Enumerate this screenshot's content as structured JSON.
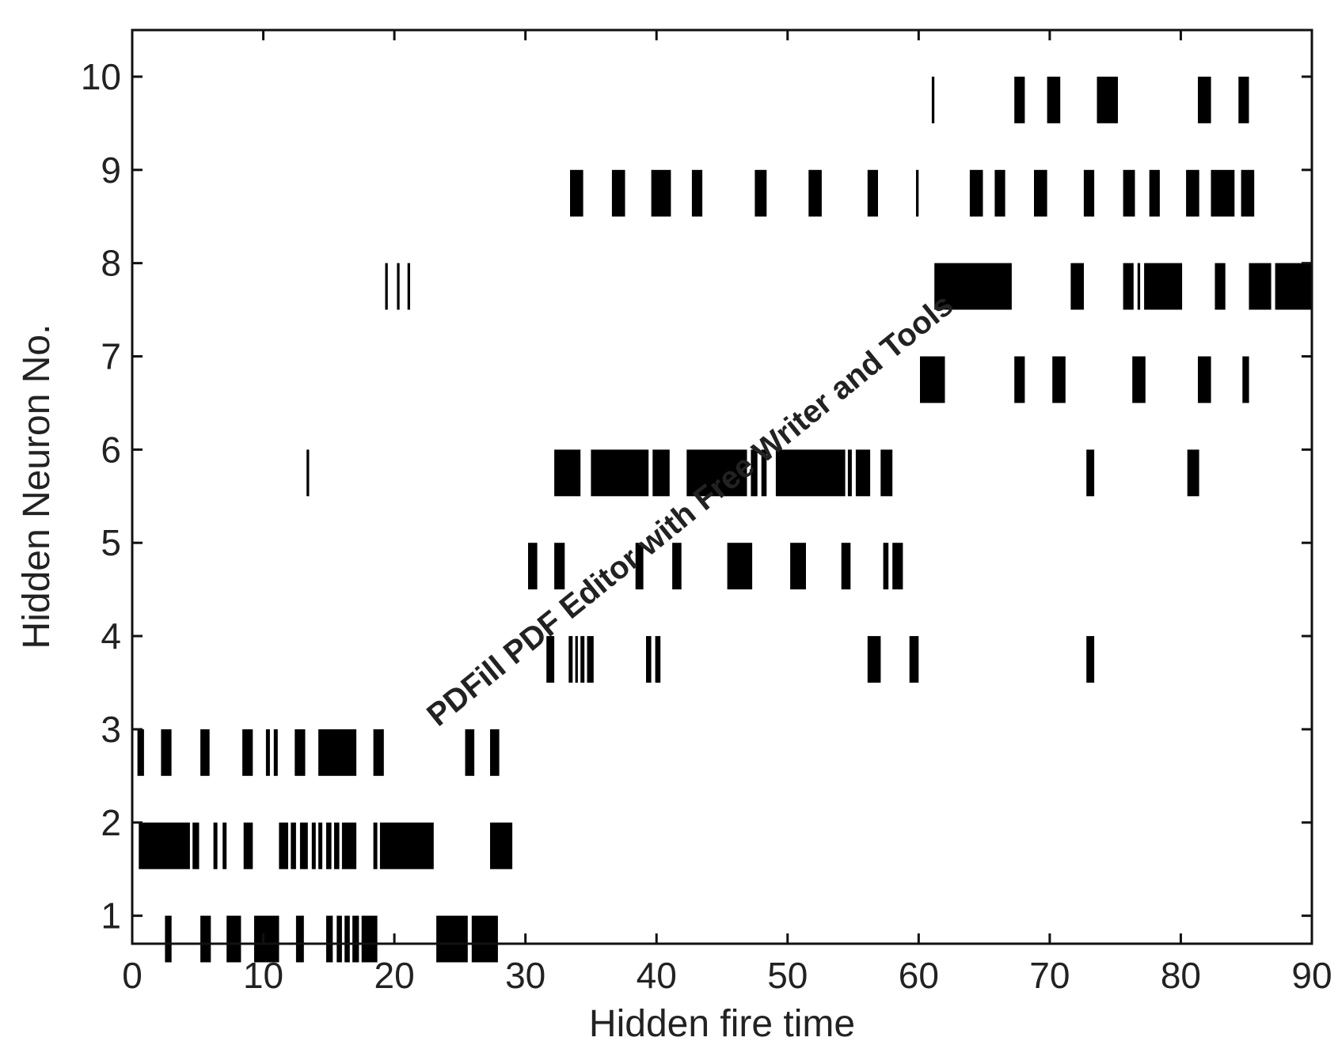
{
  "chart_data": {
    "type": "raster",
    "xlabel": "Hidden fire time",
    "ylabel": "Hidden Neuron No.",
    "xlim": [
      0,
      90
    ],
    "ylim": [
      10.5,
      0.7
    ],
    "xticks": [
      0,
      10,
      20,
      30,
      40,
      50,
      60,
      70,
      80,
      90
    ],
    "yticks": [
      1,
      2,
      3,
      4,
      5,
      6,
      7,
      8,
      9,
      10
    ],
    "grid": false,
    "series": [
      {
        "neuron": "1",
        "spikes": [
          [
            2.5,
            3.0
          ],
          [
            5.2,
            6.0
          ],
          [
            7.2,
            8.3
          ],
          [
            9.3,
            11.2
          ],
          [
            12.5,
            13.1
          ],
          [
            14.8,
            15.3
          ],
          [
            15.6,
            16.0
          ],
          [
            16.2,
            16.6
          ],
          [
            16.8,
            17.3
          ],
          [
            17.5,
            18.7
          ],
          [
            23.2,
            25.6
          ],
          [
            25.9,
            27.9
          ]
        ]
      },
      {
        "neuron": "2",
        "spikes": [
          [
            0.5,
            4.4
          ],
          [
            4.6,
            5.1
          ],
          [
            6.2,
            6.5
          ],
          [
            6.9,
            7.2
          ],
          [
            8.5,
            9.2
          ],
          [
            11.2,
            11.9
          ],
          [
            12.1,
            12.5
          ],
          [
            12.8,
            13.4
          ],
          [
            13.7,
            14.0
          ],
          [
            14.2,
            14.5
          ],
          [
            14.8,
            15.2
          ],
          [
            15.4,
            15.8
          ],
          [
            16.0,
            17.1
          ],
          [
            18.4,
            18.7
          ],
          [
            18.9,
            23.0
          ],
          [
            27.3,
            29.0
          ]
        ]
      },
      {
        "neuron": "3",
        "spikes": [
          [
            0.4,
            0.9
          ],
          [
            2.2,
            3.0
          ],
          [
            5.2,
            5.9
          ],
          [
            8.4,
            9.2
          ],
          [
            10.2,
            10.5
          ],
          [
            10.8,
            11.1
          ],
          [
            12.4,
            13.2
          ],
          [
            14.2,
            17.1
          ],
          [
            18.4,
            19.2
          ],
          [
            25.4,
            26.1
          ],
          [
            27.3,
            28.0
          ]
        ]
      },
      {
        "neuron": "4",
        "spikes": [
          [
            31.6,
            32.2
          ],
          [
            33.3,
            33.6
          ],
          [
            33.8,
            34.0
          ],
          [
            34.2,
            34.5
          ],
          [
            34.7,
            35.2
          ],
          [
            39.2,
            39.6
          ],
          [
            39.9,
            40.3
          ],
          [
            56.1,
            57.1
          ],
          [
            59.3,
            60.0
          ],
          [
            72.8,
            73.4
          ]
        ]
      },
      {
        "neuron": "5",
        "spikes": [
          [
            30.2,
            30.9
          ],
          [
            32.2,
            33.0
          ],
          [
            38.4,
            39.0
          ],
          [
            41.2,
            41.9
          ],
          [
            45.4,
            47.3
          ],
          [
            50.2,
            51.4
          ],
          [
            54.1,
            54.8
          ],
          [
            57.3,
            57.7
          ],
          [
            58.0,
            58.8
          ]
        ]
      },
      {
        "neuron": "6",
        "spikes": [
          [
            13.3,
            13.5
          ],
          [
            32.2,
            34.2
          ],
          [
            35.0,
            39.4
          ],
          [
            39.7,
            41.0
          ],
          [
            42.3,
            46.9
          ],
          [
            47.2,
            47.7
          ],
          [
            48.0,
            48.4
          ],
          [
            49.1,
            54.4
          ],
          [
            54.6,
            54.9
          ],
          [
            55.2,
            56.3
          ],
          [
            57.1,
            58.0
          ],
          [
            72.8,
            73.4
          ],
          [
            80.5,
            81.4
          ]
        ]
      },
      {
        "neuron": "7",
        "spikes": [
          [
            60.1,
            62.0
          ],
          [
            67.3,
            68.1
          ],
          [
            70.2,
            71.2
          ],
          [
            76.3,
            77.3
          ],
          [
            81.3,
            82.3
          ],
          [
            84.7,
            85.2
          ]
        ]
      },
      {
        "neuron": "8",
        "spikes": [
          [
            19.3,
            19.5
          ],
          [
            20.2,
            20.4
          ],
          [
            21.0,
            21.2
          ],
          [
            61.2,
            67.1
          ],
          [
            71.6,
            72.6
          ],
          [
            75.6,
            76.4
          ],
          [
            76.7,
            76.9
          ],
          [
            77.2,
            80.1
          ],
          [
            82.6,
            83.4
          ],
          [
            85.2,
            86.9
          ],
          [
            87.2,
            90.0
          ]
        ]
      },
      {
        "neuron": "9",
        "spikes": [
          [
            33.4,
            34.4
          ],
          [
            36.6,
            37.6
          ],
          [
            39.6,
            41.1
          ],
          [
            42.7,
            43.5
          ],
          [
            47.5,
            48.4
          ],
          [
            51.6,
            52.6
          ],
          [
            56.1,
            56.9
          ],
          [
            59.8,
            60.0
          ],
          [
            63.9,
            64.9
          ],
          [
            65.8,
            66.6
          ],
          [
            68.8,
            69.8
          ],
          [
            72.6,
            73.4
          ],
          [
            75.6,
            76.5
          ],
          [
            77.6,
            78.4
          ],
          [
            80.4,
            81.4
          ],
          [
            82.3,
            84.1
          ],
          [
            84.6,
            85.6
          ]
        ]
      },
      {
        "neuron": "10",
        "spikes": [
          [
            61.0,
            61.2
          ],
          [
            67.3,
            68.1
          ],
          [
            69.8,
            70.8
          ],
          [
            73.6,
            75.2
          ],
          [
            81.3,
            82.3
          ],
          [
            84.4,
            85.2
          ]
        ]
      }
    ]
  },
  "watermark": {
    "text": "PDFill PDF Editor with Free Writer and Tools"
  }
}
